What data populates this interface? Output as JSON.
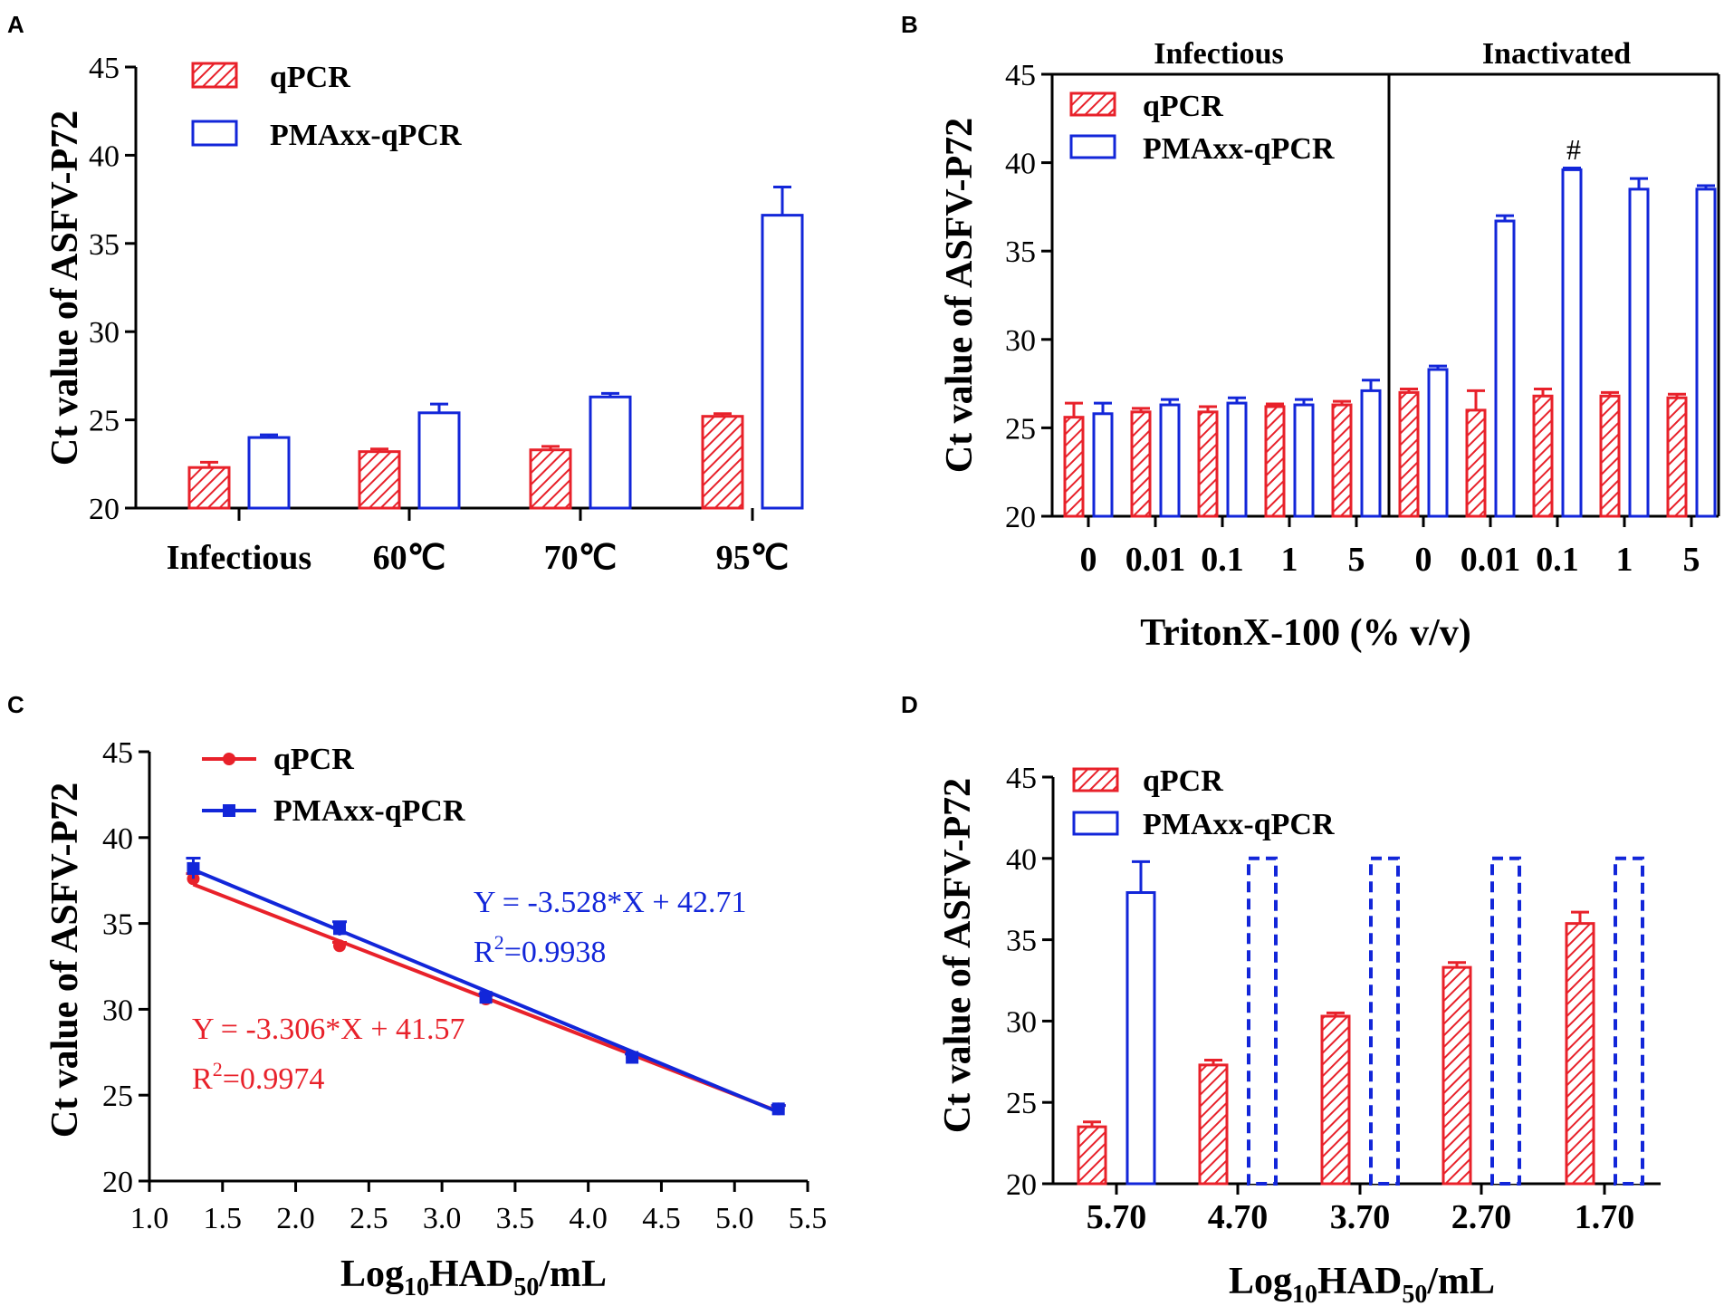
{
  "colors": {
    "qpcr": "#e8212a",
    "pmaxx": "#1226d9",
    "axis": "#000000"
  },
  "chart_data": [
    {
      "panel": "A",
      "type": "bar",
      "ylabel": "Ct value of ASFV-P72",
      "xlabel": "",
      "ylim": [
        20,
        45
      ],
      "yticks": [
        20,
        25,
        30,
        35,
        40,
        45
      ],
      "categories": [
        "Infectious",
        "60℃",
        "70℃",
        "95℃"
      ],
      "legend": [
        "qPCR",
        "PMAxx-qPCR"
      ],
      "series": [
        {
          "name": "qPCR",
          "values": [
            22.3,
            23.2,
            23.3,
            25.2
          ],
          "errors": [
            0.3,
            0.15,
            0.2,
            0.15
          ]
        },
        {
          "name": "PMAxx-qPCR",
          "values": [
            24.0,
            25.4,
            26.3,
            36.6
          ],
          "errors": [
            0.15,
            0.5,
            0.2,
            1.6
          ]
        }
      ]
    },
    {
      "panel": "B",
      "type": "bar",
      "ylabel": "Ct value of ASFV-P72",
      "xlabel": "TritonX-100 (% v/v)",
      "ylim": [
        20,
        45
      ],
      "yticks": [
        20,
        25,
        30,
        35,
        40,
        45
      ],
      "groups": [
        "Infectious",
        "Inactivated"
      ],
      "categories": [
        "0",
        "0.01",
        "0.1",
        "1",
        "5",
        "0",
        "0.01",
        "0.1",
        "1",
        "5"
      ],
      "legend": [
        "qPCR",
        "PMAxx-qPCR"
      ],
      "annotation": "#",
      "series": [
        {
          "name": "qPCR",
          "values": [
            25.6,
            25.9,
            25.9,
            26.2,
            26.3,
            27.0,
            26.0,
            26.8,
            26.8,
            26.7
          ],
          "errors": [
            0.8,
            0.2,
            0.3,
            0.15,
            0.2,
            0.2,
            1.1,
            0.4,
            0.2,
            0.2
          ]
        },
        {
          "name": "PMAxx-qPCR",
          "values": [
            25.8,
            26.3,
            26.4,
            26.3,
            27.1,
            28.3,
            36.7,
            39.6,
            38.5,
            38.5
          ],
          "errors": [
            0.6,
            0.3,
            0.3,
            0.3,
            0.6,
            0.2,
            0.3,
            0.1,
            0.6,
            0.2
          ]
        }
      ]
    },
    {
      "panel": "C",
      "type": "scatter",
      "ylabel": "Ct value of ASFV-P72",
      "xlabel_base": "Log",
      "xlabel_sub1": "10",
      "xlabel_mid": "HAD",
      "xlabel_sub2": "50",
      "xlabel_tail": "/mL",
      "xlim": [
        1.0,
        5.5
      ],
      "ylim": [
        20,
        45
      ],
      "xticks": [
        1.0,
        1.5,
        2.0,
        2.5,
        3.0,
        3.5,
        4.0,
        4.5,
        5.0,
        5.5
      ],
      "yticks": [
        20,
        25,
        30,
        35,
        40,
        45
      ],
      "legend": [
        "qPCR",
        "PMAxx-qPCR"
      ],
      "series": [
        {
          "name": "qPCR",
          "x": [
            1.3,
            2.3,
            3.3,
            4.3,
            5.3
          ],
          "y": [
            37.6,
            33.7,
            30.6,
            27.2,
            24.2
          ],
          "errors": [
            0.3,
            0.2,
            0.2,
            0.2,
            0.2
          ],
          "fit_slope": -3.306,
          "fit_intercept": 41.57,
          "equation": "Y = -3.306*X + 41.57",
          "r2_base": "R",
          "r2_sup": "2",
          "r2_value": "=0.9974"
        },
        {
          "name": "PMAxx-qPCR",
          "x": [
            1.3,
            2.3,
            3.3,
            4.3,
            5.3
          ],
          "y": [
            38.2,
            34.7,
            30.7,
            27.2,
            24.2
          ],
          "errors": [
            0.6,
            0.4,
            0.2,
            0.2,
            0.2
          ],
          "fit_slope": -3.528,
          "fit_intercept": 42.71,
          "equation": "Y = -3.528*X + 42.71",
          "r2_base": "R",
          "r2_sup": "2",
          "r2_value": "=0.9938"
        }
      ]
    },
    {
      "panel": "D",
      "type": "bar",
      "ylabel": "Ct value of ASFV-P72",
      "xlabel_base": "Log",
      "xlabel_sub1": "10",
      "xlabel_mid": "HAD",
      "xlabel_sub2": "50",
      "xlabel_tail": "/mL",
      "ylim": [
        20,
        45
      ],
      "yticks": [
        20,
        25,
        30,
        35,
        40,
        45
      ],
      "categories": [
        "5.70",
        "4.70",
        "3.70",
        "2.70",
        "1.70"
      ],
      "legend": [
        "qPCR",
        "PMAxx-qPCR"
      ],
      "series": [
        {
          "name": "qPCR",
          "values": [
            23.5,
            27.3,
            30.3,
            33.3,
            36.0
          ],
          "errors": [
            0.3,
            0.3,
            0.2,
            0.3,
            0.7
          ]
        },
        {
          "name": "PMAxx-qPCR",
          "values": [
            37.9,
            40.0,
            40.0,
            40.0,
            40.0
          ],
          "errors": [
            1.9,
            0,
            0,
            0,
            0
          ],
          "undetected": [
            false,
            true,
            true,
            true,
            true
          ]
        }
      ]
    }
  ]
}
